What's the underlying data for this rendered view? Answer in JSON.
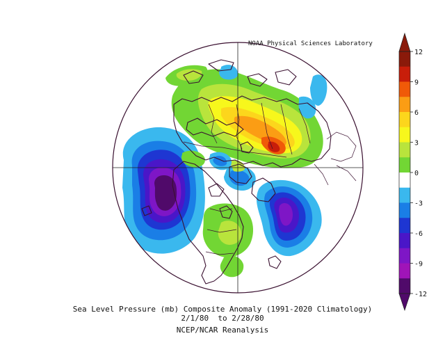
{
  "credit": "NOAA Physical Sciences Laboratory",
  "caption": {
    "line1": "Sea Level Pressure (mb) Composite Anomaly (1991-2020 Climatology)",
    "line2": "2/1/80  to 2/28/80",
    "line3": "NCEP/NCAR Reanalysis"
  },
  "colorbar": {
    "ticks": [
      "12",
      "9",
      "6",
      "3",
      "0",
      "-3",
      "-6",
      "-9",
      "-12"
    ],
    "colors": [
      "#8a1a0a",
      "#c81e0a",
      "#f05a08",
      "#fb9d14",
      "#fcd61c",
      "#f7f71c",
      "#b9e43c",
      "#72d634",
      "#ffffff",
      "#3ab8ee",
      "#1a7ee6",
      "#1e36d2",
      "#4a16c8",
      "#7e16c6",
      "#a014b8",
      "#500a6a"
    ]
  },
  "map": {
    "projection": "north-polar-stereographic",
    "anomalies": [
      {
        "region": "north-pacific",
        "sign": "negative",
        "peak_mb": -12
      },
      {
        "region": "north-atlantic",
        "sign": "negative",
        "peak_mb": -9
      },
      {
        "region": "siberia",
        "sign": "positive",
        "peak_mb": 6
      },
      {
        "region": "central-asia",
        "sign": "positive",
        "peak_mb": 9
      }
    ]
  }
}
